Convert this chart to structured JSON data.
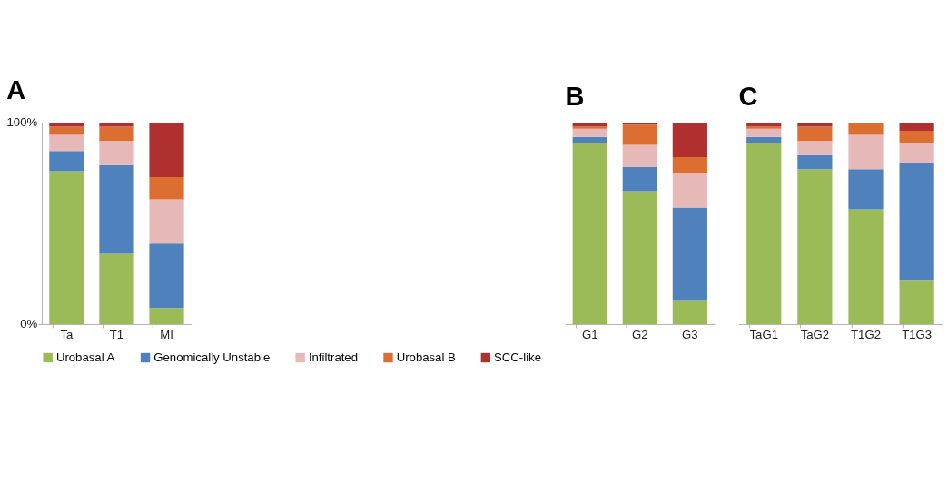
{
  "chart_data": [
    {
      "type": "bar",
      "title": "A",
      "stacked": true,
      "categories": [
        "Ta",
        "T1",
        "MI"
      ],
      "ylim": [
        0,
        100
      ],
      "yticks": [
        {
          "value": 0,
          "label": "0%"
        },
        {
          "value": 100,
          "label": "100%"
        }
      ],
      "grid": false,
      "legend": "bottom",
      "series": [
        {
          "name": "Urobasal A",
          "color": "#9bbb59",
          "values": [
            76,
            35,
            8
          ]
        },
        {
          "name": "Genomically Unstable",
          "color": "#4f81bd",
          "values": [
            10,
            44,
            32
          ]
        },
        {
          "name": "Infiltrated",
          "color": "#e6b9b8",
          "values": [
            8,
            12,
            22
          ]
        },
        {
          "name": "Urobasal B",
          "color": "#dd6e32",
          "values": [
            4,
            7,
            11
          ]
        },
        {
          "name": "SCC-like",
          "color": "#b0302f",
          "values": [
            2,
            2,
            27
          ]
        }
      ]
    },
    {
      "type": "bar",
      "title": "B",
      "stacked": true,
      "categories": [
        "G1",
        "G2",
        "G3"
      ],
      "ylim": [
        0,
        100
      ],
      "tick_labels": "x",
      "grid": false,
      "series": [
        {
          "color": "#9bbb59",
          "values": [
            90,
            66,
            12
          ]
        },
        {
          "color": "#4f81bd",
          "values": [
            3,
            12,
            46
          ]
        },
        {
          "color": "#e6b9b8",
          "values": [
            4,
            11,
            17
          ]
        },
        {
          "color": "#dd6e32",
          "values": [
            1,
            10,
            8
          ]
        },
        {
          "color": "#b0302f",
          "values": [
            2,
            1,
            17
          ]
        }
      ]
    },
    {
      "type": "bar",
      "title": "C",
      "stacked": true,
      "categories": [
        "TaG1",
        "TaG2",
        "T1G2",
        "T1G3"
      ],
      "ylim": [
        0,
        100
      ],
      "tick_labels": "x",
      "grid": false,
      "series": [
        {
          "color": "#9bbb59",
          "values": [
            90,
            77,
            57,
            22
          ]
        },
        {
          "color": "#4f81bd",
          "values": [
            3,
            7,
            20,
            58
          ]
        },
        {
          "color": "#e6b9b8",
          "values": [
            4,
            7,
            17,
            10
          ]
        },
        {
          "color": "#dd6e32",
          "values": [
            1,
            7,
            6,
            6
          ]
        },
        {
          "color": "#b0302f",
          "values": [
            2,
            2,
            0,
            4
          ]
        }
      ]
    }
  ]
}
